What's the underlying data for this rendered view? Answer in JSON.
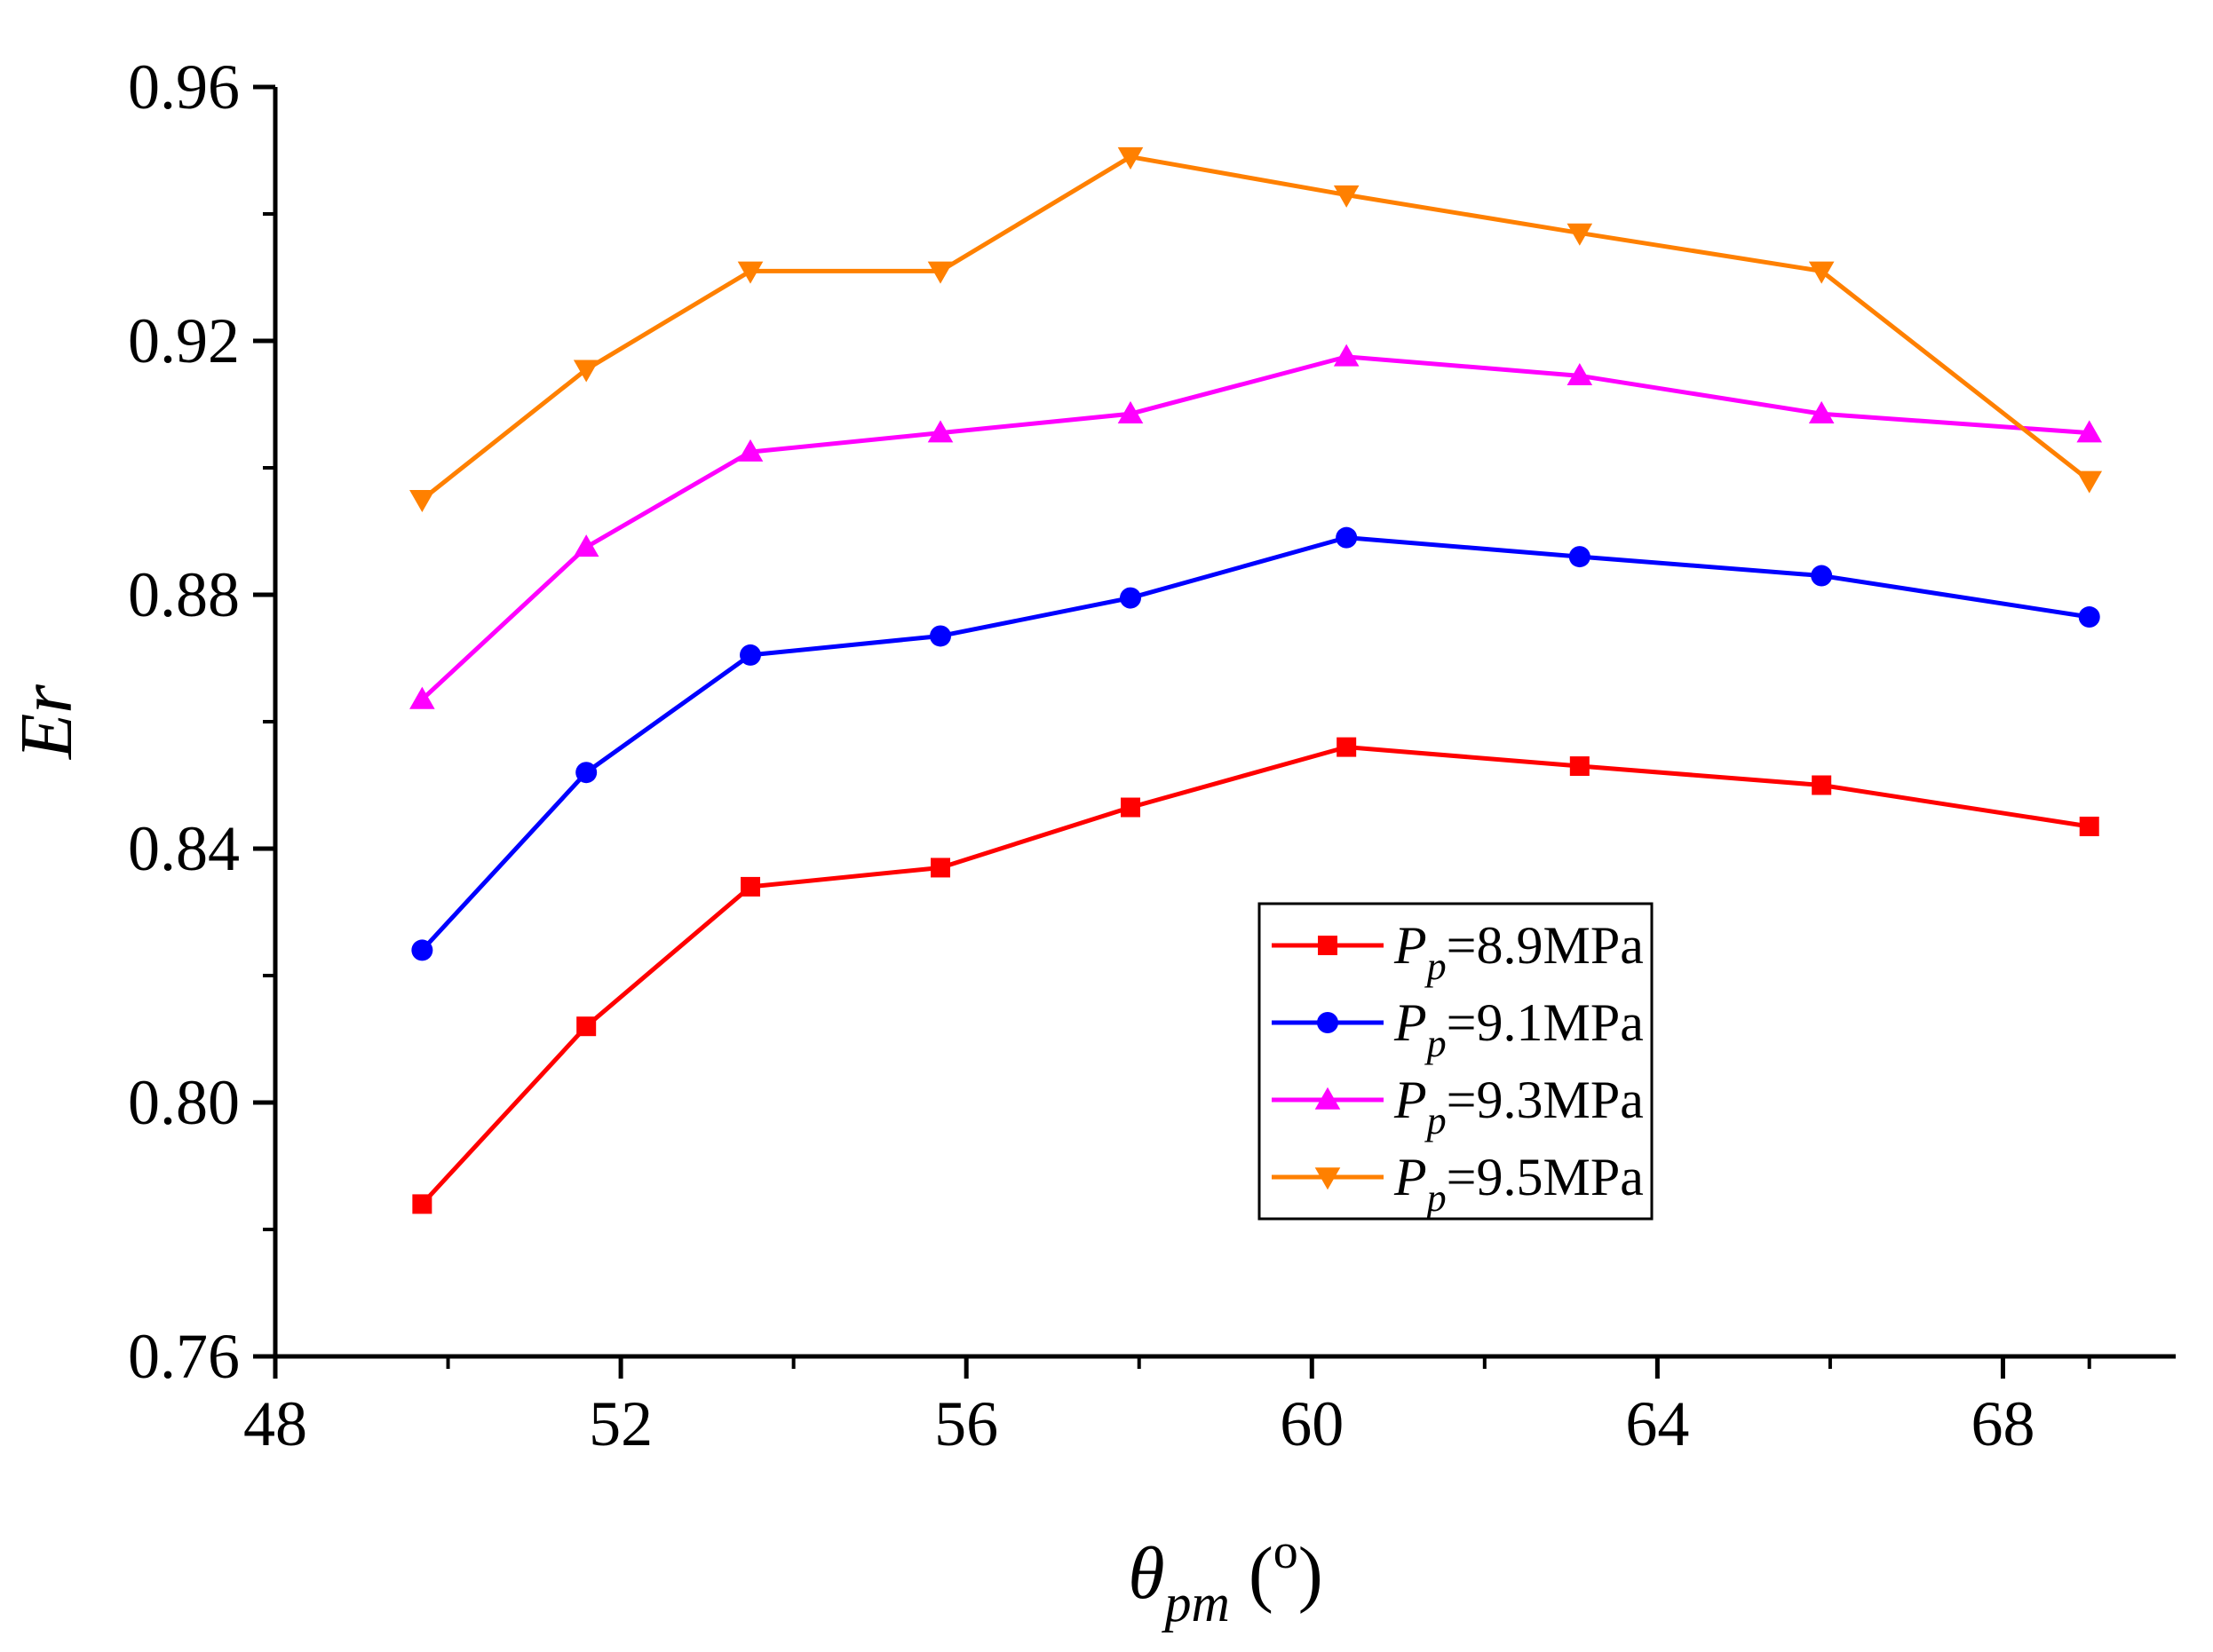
{
  "chart_data": {
    "type": "line",
    "title": "",
    "ylabel": "Er",
    "xlabel": {
      "symbol": "θ",
      "subscript": "pm",
      "unit_open": " (",
      "unit_sup": "o",
      "unit_close": ")"
    },
    "xlim": [
      48,
      70
    ],
    "ylim": [
      0.76,
      0.96
    ],
    "x_ticks": [
      48,
      52,
      56,
      60,
      64,
      68
    ],
    "x_tick_labels": [
      "48",
      "52",
      "56",
      "60",
      "64",
      "68"
    ],
    "y_ticks": [
      0.76,
      0.8,
      0.84,
      0.88,
      0.92,
      0.96
    ],
    "y_tick_labels": [
      "0.76",
      "0.80",
      "0.84",
      "0.88",
      "0.92",
      "0.96"
    ],
    "x": [
      49.7,
      51.6,
      53.5,
      55.7,
      57.9,
      60.4,
      63.1,
      65.9,
      69.0
    ],
    "series": [
      {
        "name": "8.9MPa",
        "legend_prefix": "P",
        "legend_sub": "p",
        "legend_value": "=8.9MPa",
        "color": "#ff0000",
        "marker": "square",
        "values": [
          0.784,
          0.812,
          0.834,
          0.837,
          0.8465,
          0.856,
          0.853,
          0.85,
          0.8435
        ]
      },
      {
        "name": "9.1MPa",
        "legend_prefix": "P",
        "legend_sub": "p",
        "legend_value": "=9.1MPa",
        "color": "#0000ff",
        "marker": "circle",
        "values": [
          0.824,
          0.852,
          0.8705,
          0.8735,
          0.8795,
          0.889,
          0.886,
          0.883,
          0.8765
        ]
      },
      {
        "name": "9.3MPa",
        "legend_prefix": "P",
        "legend_sub": "p",
        "legend_value": "=9.3MPa",
        "color": "#ff00ff",
        "marker": "triangle-up",
        "values": [
          0.8635,
          0.8875,
          0.9025,
          0.9055,
          0.9085,
          0.9175,
          0.9145,
          0.9085,
          0.9055
        ]
      },
      {
        "name": "9.5MPa",
        "legend_prefix": "P",
        "legend_sub": "p",
        "legend_value": "=9.5MPa",
        "color": "#ff8000",
        "marker": "triangle-down",
        "values": [
          0.895,
          0.9155,
          0.931,
          0.931,
          0.949,
          0.943,
          0.937,
          0.931,
          0.898
        ]
      }
    ],
    "legend_position": "bottom-right of plot area, inside"
  }
}
